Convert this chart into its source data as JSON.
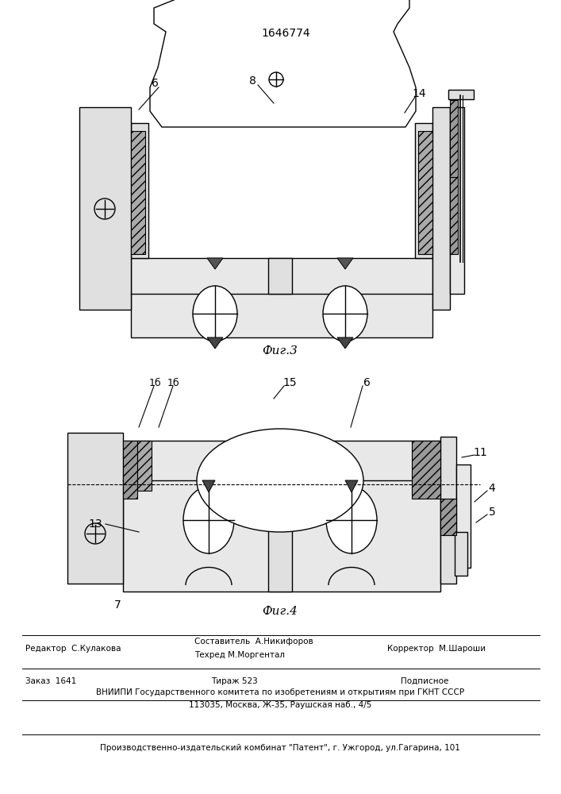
{
  "patent_number": "1646774",
  "fig3_label": "Фиг.3",
  "fig4_label": "Фиг.4",
  "footer_editor": "Редактор  С.Кулакова",
  "footer_compiler": "Составитель  А.Никифоров",
  "footer_techred": "Техред М.Моргентал",
  "footer_corrector": "Корректор  М.Шароши",
  "footer_order": "Заказ  1641",
  "footer_tirazh": "Тираж 523",
  "footer_podpisnoe": "Подписное",
  "footer_vniipii": "ВНИИПИ Государственного комитета по изобретениям и открытиям при ГКНТ СССР",
  "footer_address": "113035, Москва, Ж-35, Раушская наб., 4/5",
  "footer_publisher": "Производственно-издательский комбинат \"Патент\", г. Ужгород, ул.Гагарина, 101",
  "bg_color": "#ffffff"
}
